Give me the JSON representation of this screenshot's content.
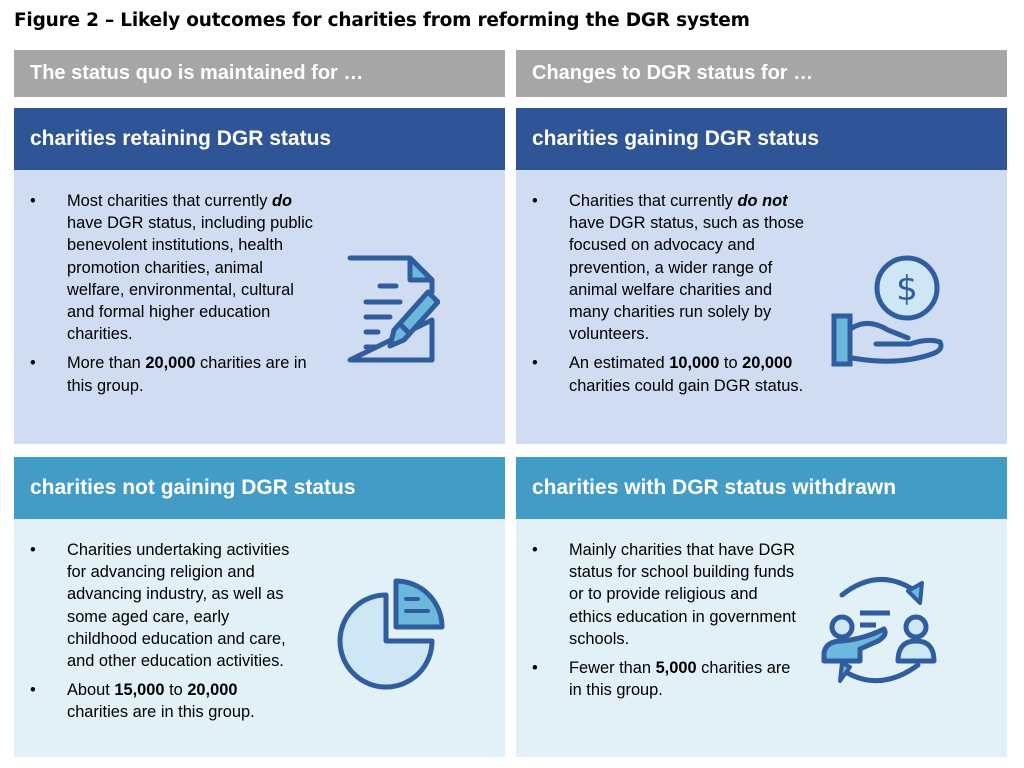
{
  "title": "Figure 2 – Likely outcomes for charities from reforming the DGR system",
  "columns": [
    {
      "label": "The status quo is maintained for …"
    },
    {
      "label": "Changes to DGR status for …"
    }
  ],
  "colors": {
    "grey_header": "#a6a6a6",
    "dark_blue_header": "#2f5597",
    "teal_header": "#429cc5",
    "light_blue_panel": "#cfdcf2",
    "light_cyan_panel": "#e2f0f8",
    "icon_stroke": "#2f5d9e",
    "icon_fill": "#6bb8dc"
  },
  "boxes": [
    {
      "heading": "charities retaining DGR status",
      "icon": "document-pen-icon",
      "bullets": [
        [
          {
            "t": "Most charities that currently "
          },
          {
            "t": "do",
            "s": "bi"
          },
          {
            "t": " have DGR status, including public benevolent institutions, health promotion charities, animal welfare, environmental, cultural and formal higher education charities."
          }
        ],
        [
          {
            "t": "More than "
          },
          {
            "t": "20,000",
            "s": "b"
          },
          {
            "t": " charities are in this group."
          }
        ]
      ]
    },
    {
      "heading": "charities gaining DGR status",
      "icon": "hand-coin-icon",
      "bullets": [
        [
          {
            "t": "Charities that currently "
          },
          {
            "t": "do not",
            "s": "bi"
          },
          {
            "t": " have DGR status, such as those focused on advocacy and prevention, a wider range of animal welfare charities and many charities run solely by volunteers."
          }
        ],
        [
          {
            "t": "An estimated "
          },
          {
            "t": "10,000",
            "s": "b"
          },
          {
            "t": " to "
          },
          {
            "t": "20,000",
            "s": "b"
          },
          {
            "t": " charities could gain DGR status."
          }
        ]
      ]
    },
    {
      "heading": "charities not gaining DGR status",
      "icon": "pie-chart-icon",
      "bullets": [
        [
          {
            "t": "Charities undertaking activities for advancing religion and advancing industry, as well as some aged care, early childhood education and care, and other education activities."
          }
        ],
        [
          {
            "t": "About "
          },
          {
            "t": "15,000",
            "s": "b"
          },
          {
            "t": " to "
          },
          {
            "t": "20,000",
            "s": "b"
          },
          {
            "t": " charities are in this group."
          }
        ]
      ]
    },
    {
      "heading": "charities with DGR status withdrawn",
      "icon": "transfer-people-icon",
      "bullets": [
        [
          {
            "t": "Mainly charities that have DGR status for school building funds or to provide religious and ethics education in government schools."
          }
        ],
        [
          {
            "t": "Fewer than "
          },
          {
            "t": "5,000",
            "s": "b"
          },
          {
            "t": " charities are in this group."
          }
        ]
      ]
    }
  ]
}
